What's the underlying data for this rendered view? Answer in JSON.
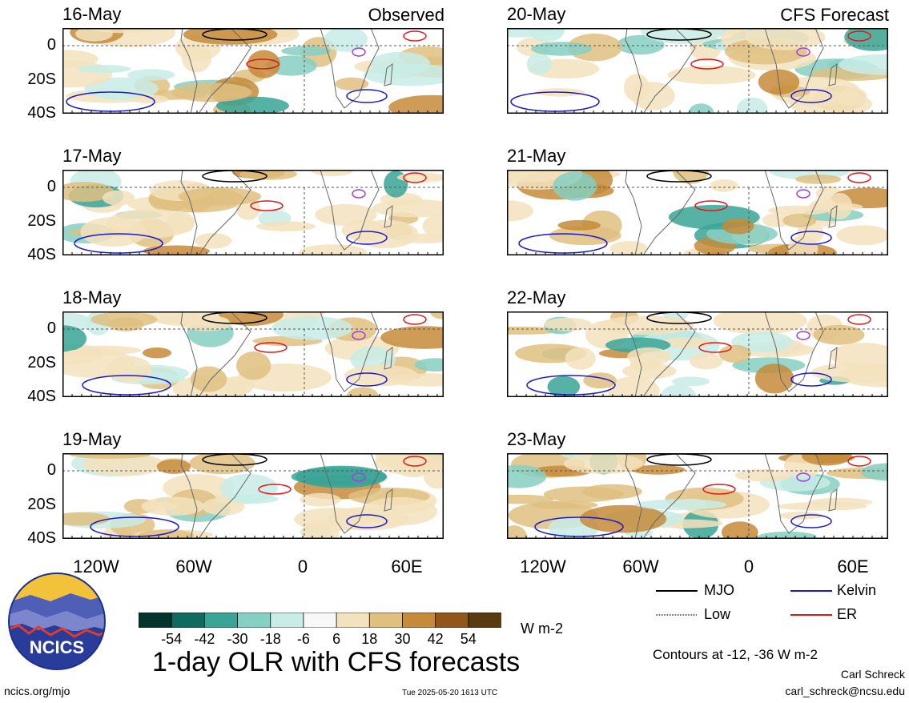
{
  "headers": {
    "observed": "Observed",
    "forecast": "CFS Forecast"
  },
  "panels": {
    "left": [
      {
        "date": "16-May"
      },
      {
        "date": "17-May"
      },
      {
        "date": "18-May"
      },
      {
        "date": "19-May"
      }
    ],
    "right": [
      {
        "date": "20-May"
      },
      {
        "date": "21-May"
      },
      {
        "date": "22-May"
      },
      {
        "date": "23-May"
      }
    ]
  },
  "y_ticks": [
    "0",
    "20S",
    "40S"
  ],
  "x_ticks": [
    "120W",
    "60W",
    "0",
    "60E"
  ],
  "legend": {
    "mjo": {
      "label": "MJO",
      "color": "#000000"
    },
    "kelvin": {
      "label": "Kelvin",
      "color": "#1a1acc"
    },
    "low": {
      "label": "Low",
      "color": "#a040e0"
    },
    "er": {
      "label": "ER",
      "color": "#e01818"
    }
  },
  "colorbar": {
    "unit": "W m-2",
    "labels": [
      "-54",
      "-42",
      "-30",
      "-18",
      "-6",
      "6",
      "18",
      "30",
      "42",
      "54"
    ],
    "colors": [
      "#04342c",
      "#0f6b60",
      "#3aa597",
      "#86cfc3",
      "#c8ece6",
      "#f7f7f7",
      "#f3e2bd",
      "#dfc080",
      "#c68b3a",
      "#93561a",
      "#5a3a0f"
    ]
  },
  "contours_note": "Contours at -12, -36 W m-2",
  "title": "1-day OLR with CFS forecasts",
  "footer": {
    "left": "ncics.org/mjo",
    "center": "Tue 2025-05-20 1613 UTC",
    "author": "Carl Schreck",
    "email": "carl_schreck@ncsu.edu"
  },
  "logo": {
    "text": "NCICS"
  }
}
